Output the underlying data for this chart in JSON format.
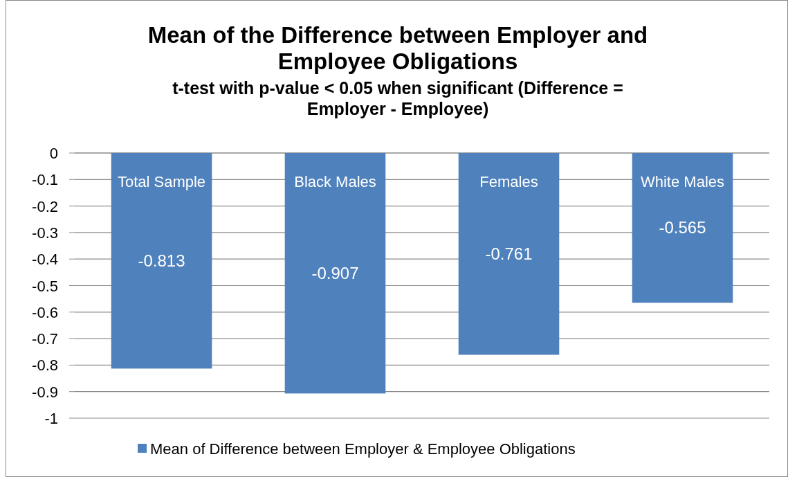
{
  "chart_data": {
    "type": "bar",
    "title": "Mean of the Difference between Employer and Employee Obligations",
    "subtitle": "t-test with p-value < 0.05 when significant (Difference = Employer - Employee)",
    "categories": [
      "Total Sample",
      "Black Males",
      "Females",
      "White Males"
    ],
    "series": [
      {
        "name": "Mean of Difference between Employer & Employee Obligations",
        "color": "#4f81bd",
        "values": [
          -0.813,
          -0.907,
          -0.761,
          -0.565
        ]
      }
    ],
    "ylim": [
      -1,
      0
    ],
    "yticks": [
      0,
      -0.1,
      -0.2,
      -0.3,
      -0.4,
      -0.5,
      -0.6,
      -0.7,
      -0.8,
      -0.9,
      -1
    ],
    "grid": "y",
    "legend": "bottom",
    "data_labels": true
  }
}
